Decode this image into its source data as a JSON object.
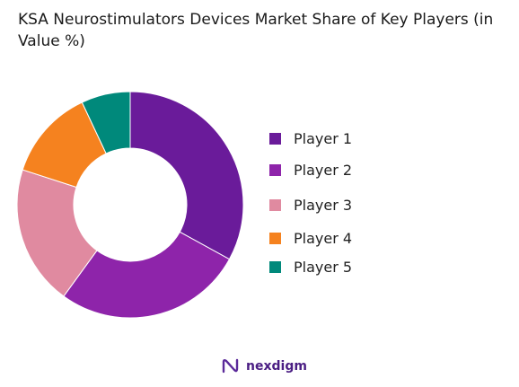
{
  "title": "KSA Neurostimulators Devices Market Share of Key Players (in Value %)",
  "brand": {
    "name": "nexdigm",
    "icon": "nexdigm-logo-icon"
  },
  "chart_data": {
    "type": "pie",
    "variant": "donut",
    "title": "KSA Neurostimulators Devices Market Share of Key Players (in Value %)",
    "categories": [
      "Player 1",
      "Player 2",
      "Player 3",
      "Player 4",
      "Player 5"
    ],
    "values": [
      33,
      27,
      20,
      13,
      7
    ],
    "colors": [
      "#6a1b9a",
      "#8e24aa",
      "#e08aa0",
      "#f5821f",
      "#00897b"
    ],
    "legend_position": "right"
  }
}
